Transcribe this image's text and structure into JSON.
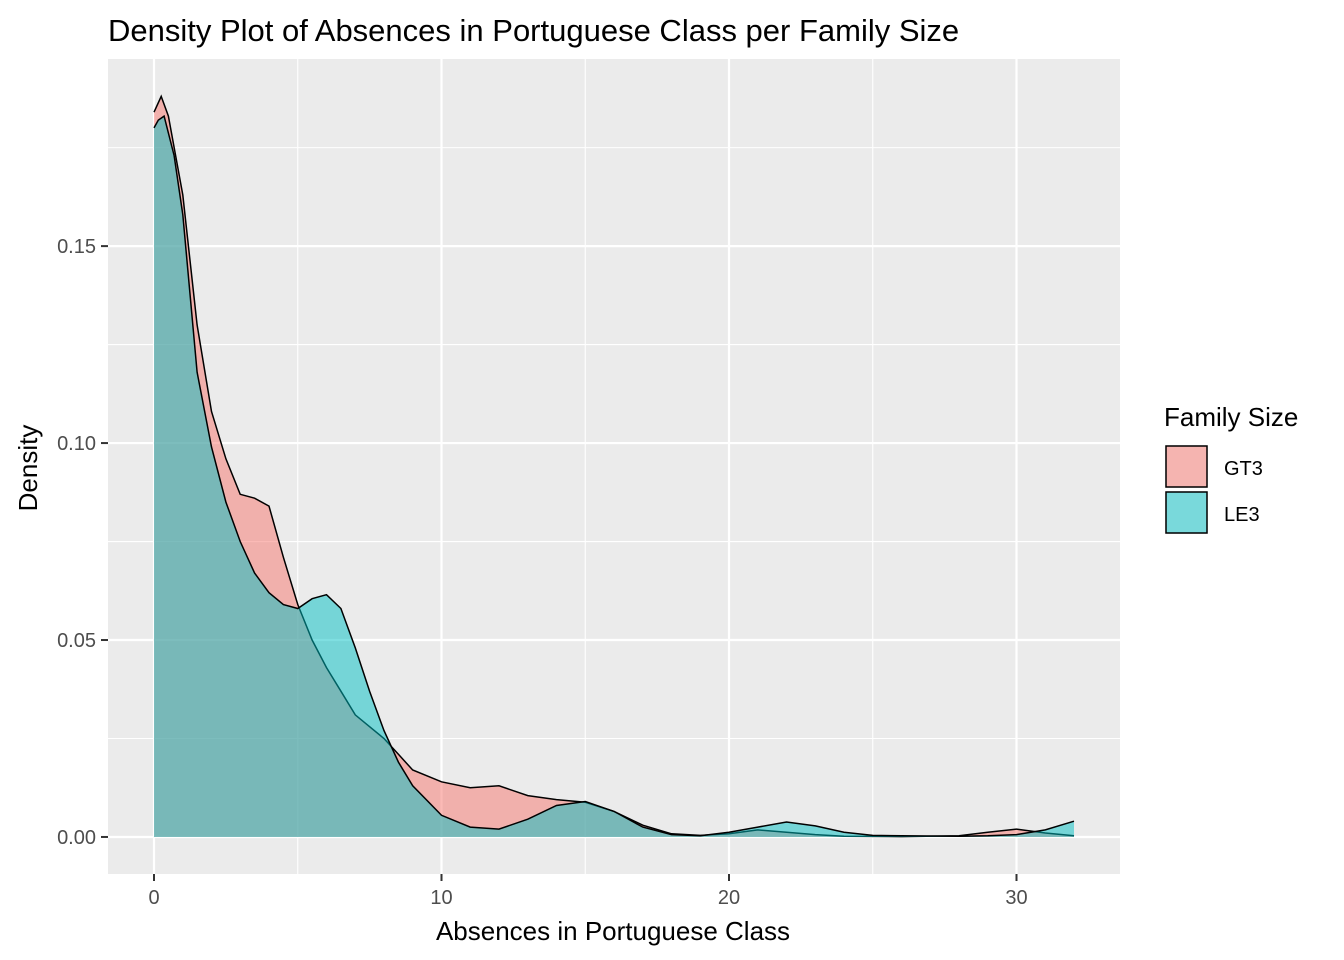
{
  "chart_data": {
    "type": "area",
    "title": "Density Plot of Absences in Portuguese Class per Family Size",
    "xlabel": "Absences in Portuguese Class",
    "ylabel": "Density",
    "xlim": [
      -1.6,
      33.6
    ],
    "ylim": [
      -0.0094,
      0.1975
    ],
    "x_ticks": [
      0,
      10,
      20,
      30
    ],
    "x_tick_labels": [
      "0",
      "10",
      "20",
      "30"
    ],
    "y_ticks": [
      0.0,
      0.05,
      0.1,
      0.15
    ],
    "y_tick_labels": [
      "0.00",
      "0.05",
      "0.10",
      "0.15"
    ],
    "grid": true,
    "legend": {
      "title": "Family Size",
      "position": "right"
    },
    "series": [
      {
        "name": "GT3",
        "color": "#F8766D",
        "points": [
          [
            0.0,
            0.184
          ],
          [
            0.25,
            0.188
          ],
          [
            0.5,
            0.183
          ],
          [
            1.0,
            0.163
          ],
          [
            1.5,
            0.13
          ],
          [
            2.0,
            0.108
          ],
          [
            2.5,
            0.096
          ],
          [
            3.0,
            0.087
          ],
          [
            3.5,
            0.086
          ],
          [
            4.0,
            0.084
          ],
          [
            4.5,
            0.071
          ],
          [
            5.0,
            0.059
          ],
          [
            5.5,
            0.05
          ],
          [
            6.0,
            0.043
          ],
          [
            6.5,
            0.037
          ],
          [
            7.0,
            0.031
          ],
          [
            7.5,
            0.028
          ],
          [
            8.0,
            0.025
          ],
          [
            8.5,
            0.021
          ],
          [
            9.0,
            0.017
          ],
          [
            10.0,
            0.014
          ],
          [
            11.0,
            0.0125
          ],
          [
            12.0,
            0.013
          ],
          [
            13.0,
            0.0105
          ],
          [
            14.0,
            0.0095
          ],
          [
            15.0,
            0.0088
          ],
          [
            16.0,
            0.0065
          ],
          [
            17.0,
            0.003
          ],
          [
            18.0,
            0.0008
          ],
          [
            19.0,
            0.0004
          ],
          [
            20.0,
            0.0008
          ],
          [
            21.0,
            0.0018
          ],
          [
            22.0,
            0.0012
          ],
          [
            23.0,
            0.0006
          ],
          [
            24.0,
            0.0002
          ],
          [
            26.0,
            0.0001
          ],
          [
            28.0,
            0.0003
          ],
          [
            29.0,
            0.0012
          ],
          [
            30.0,
            0.002
          ],
          [
            31.0,
            0.001
          ],
          [
            32.0,
            0.0003
          ]
        ]
      },
      {
        "name": "LE3",
        "color": "#00BFC4",
        "points": [
          [
            0.0,
            0.18
          ],
          [
            0.15,
            0.182
          ],
          [
            0.35,
            0.183
          ],
          [
            0.7,
            0.173
          ],
          [
            1.0,
            0.158
          ],
          [
            1.5,
            0.118
          ],
          [
            2.0,
            0.099
          ],
          [
            2.5,
            0.085
          ],
          [
            3.0,
            0.075
          ],
          [
            3.5,
            0.067
          ],
          [
            4.0,
            0.062
          ],
          [
            4.5,
            0.059
          ],
          [
            5.0,
            0.058
          ],
          [
            5.5,
            0.0605
          ],
          [
            6.0,
            0.0615
          ],
          [
            6.5,
            0.058
          ],
          [
            7.0,
            0.048
          ],
          [
            7.5,
            0.037
          ],
          [
            8.0,
            0.027
          ],
          [
            8.5,
            0.019
          ],
          [
            9.0,
            0.013
          ],
          [
            10.0,
            0.0055
          ],
          [
            11.0,
            0.0025
          ],
          [
            12.0,
            0.002
          ],
          [
            13.0,
            0.0045
          ],
          [
            14.0,
            0.008
          ],
          [
            15.0,
            0.009
          ],
          [
            16.0,
            0.0065
          ],
          [
            17.0,
            0.0025
          ],
          [
            18.0,
            0.0006
          ],
          [
            19.0,
            0.0003
          ],
          [
            20.0,
            0.0012
          ],
          [
            21.0,
            0.0025
          ],
          [
            22.0,
            0.0038
          ],
          [
            23.0,
            0.0028
          ],
          [
            24.0,
            0.0012
          ],
          [
            25.0,
            0.0004
          ],
          [
            26.0,
            0.0003
          ],
          [
            28.0,
            0.0002
          ],
          [
            29.0,
            0.0003
          ],
          [
            30.0,
            0.0006
          ],
          [
            31.0,
            0.0018
          ],
          [
            32.0,
            0.004
          ]
        ]
      }
    ]
  }
}
